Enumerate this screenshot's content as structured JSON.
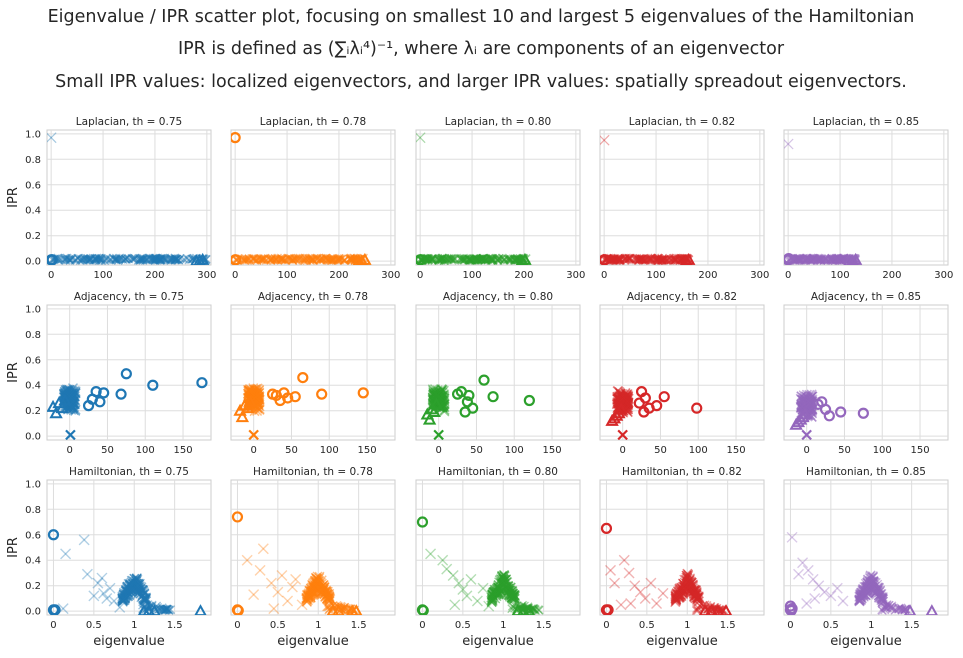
{
  "figure": {
    "title_lines": [
      "Eigenvalue / IPR scatter plot, focusing on smallest 10 and largest 5 eigenvalues of the Hamiltonian",
      "IPR is defined as (∑ᵢλᵢ⁴)⁻¹, where λᵢ are components of an eigenvector",
      "Small IPR values: localized eigenvectors, and larger IPR values: spatially spreadout eigenvectors."
    ]
  },
  "chart_data": {
    "type": "scatter",
    "markers": {
      "smallest_10": "circle",
      "largest_5": "triangle",
      "others": "x"
    },
    "series_colors": [
      "#1f77b4",
      "#ff7f0e",
      "#2ca02c",
      "#d62728",
      "#9467bd"
    ],
    "grid": true,
    "ylabel": "IPR",
    "xlabel": "eigenvalue",
    "ylim": [
      -0.03,
      1.03
    ],
    "yticks": [
      0.0,
      0.2,
      0.4,
      0.6,
      0.8,
      1.0
    ],
    "rows": [
      {
        "name": "Laplacian",
        "xlim": [
          -8,
          308
        ],
        "xticks": [
          0,
          100,
          200,
          300
        ],
        "panels": [
          {
            "title": "Laplacian, th = 0.75",
            "spread": [
              0,
              300
            ],
            "highlow": [
              0.97
            ],
            "circles": [
              [
                0,
                0.01
              ],
              [
                1,
                0.01
              ],
              [
                2,
                0.01
              ]
            ],
            "triangles": [
              [
                280,
                0.0
              ],
              [
                286,
                0.0
              ],
              [
                292,
                0.01
              ]
            ]
          },
          {
            "title": "Laplacian, th = 0.78",
            "spread": [
              0,
              250
            ],
            "highlow": [],
            "circles": [
              [
                0,
                0.97
              ],
              [
                0,
                0.01
              ],
              [
                1,
                0.01
              ]
            ],
            "triangles": [
              [
                238,
                0.0
              ],
              [
                244,
                0.0
              ],
              [
                250,
                0.01
              ]
            ]
          },
          {
            "title": "Laplacian, th = 0.80",
            "spread": [
              0,
              205
            ],
            "highlow": [
              0.97
            ],
            "circles": [
              [
                0,
                0.01
              ],
              [
                1,
                0.01
              ]
            ],
            "triangles": [
              [
                196,
                0.0
              ],
              [
                202,
                0.01
              ]
            ]
          },
          {
            "title": "Laplacian, th = 0.82",
            "spread": [
              0,
              165
            ],
            "highlow": [
              0.95
            ],
            "circles": [
              [
                0,
                0.01
              ],
              [
                1,
                0.01
              ]
            ],
            "triangles": [
              [
                158,
                0.0
              ],
              [
                163,
                0.01
              ]
            ]
          },
          {
            "title": "Laplacian, th = 0.85",
            "spread": [
              0,
              130
            ],
            "highlow": [
              0.92
            ],
            "circles": [
              [
                0,
                0.01
              ],
              [
                1,
                0.02
              ]
            ],
            "triangles": [
              [
                118,
                0.0
              ],
              [
                124,
                0.0
              ],
              [
                130,
                0.01
              ]
            ]
          }
        ]
      },
      {
        "name": "Adjacency",
        "xlim": [
          -30,
          187
        ],
        "xticks": [
          0,
          50,
          100,
          150
        ],
        "panels": [
          {
            "title": "Adjacency, th = 0.75",
            "cluster": [
              0,
              0.29
            ],
            "xs": [
              [
                1,
                0.01
              ]
            ],
            "circles": [
              [
                25,
                0.24
              ],
              [
                30,
                0.29
              ],
              [
                35,
                0.35
              ],
              [
                40,
                0.27
              ],
              [
                45,
                0.34
              ],
              [
                68,
                0.33
              ],
              [
                75,
                0.49
              ],
              [
                110,
                0.4
              ],
              [
                175,
                0.42
              ]
            ],
            "triangles": [
              [
                -22,
                0.23
              ],
              [
                -18,
                0.18
              ],
              [
                -14,
                0.26
              ],
              [
                -10,
                0.22
              ],
              [
                -6,
                0.28
              ]
            ]
          },
          {
            "title": "Adjacency, th = 0.78",
            "cluster": [
              0,
              0.29
            ],
            "xs": [
              [
                0,
                0.01
              ]
            ],
            "circles": [
              [
                25,
                0.33
              ],
              [
                30,
                0.32
              ],
              [
                35,
                0.28
              ],
              [
                40,
                0.34
              ],
              [
                45,
                0.3
              ],
              [
                55,
                0.31
              ],
              [
                65,
                0.46
              ],
              [
                90,
                0.33
              ],
              [
                145,
                0.34
              ]
            ],
            "triangles": [
              [
                -18,
                0.2
              ],
              [
                -15,
                0.15
              ],
              [
                -12,
                0.24
              ],
              [
                -8,
                0.22
              ],
              [
                -5,
                0.27
              ]
            ]
          },
          {
            "title": "Adjacency, th = 0.80",
            "cluster": [
              0,
              0.28
            ],
            "xs": [
              [
                0,
                0.01
              ]
            ],
            "circles": [
              [
                25,
                0.33
              ],
              [
                30,
                0.35
              ],
              [
                35,
                0.19
              ],
              [
                38,
                0.27
              ],
              [
                40,
                0.32
              ],
              [
                45,
                0.22
              ],
              [
                60,
                0.44
              ],
              [
                72,
                0.31
              ],
              [
                120,
                0.28
              ]
            ],
            "triangles": [
              [
                -15,
                0.17
              ],
              [
                -12,
                0.13
              ],
              [
                -9,
                0.21
              ],
              [
                -6,
                0.19
              ],
              [
                -3,
                0.25
              ]
            ]
          },
          {
            "title": "Adjacency, th = 0.82",
            "cluster": [
              0,
              0.27
            ],
            "xs": [
              [
                0,
                0.01
              ]
            ],
            "circles": [
              [
                22,
                0.26
              ],
              [
                25,
                0.35
              ],
              [
                28,
                0.19
              ],
              [
                30,
                0.3
              ],
              [
                35,
                0.22
              ],
              [
                45,
                0.24
              ],
              [
                55,
                0.31
              ],
              [
                98,
                0.22
              ]
            ],
            "triangles": [
              [
                -14,
                0.12
              ],
              [
                -11,
                0.14
              ],
              [
                -8,
                0.16
              ],
              [
                -5,
                0.18
              ],
              [
                -2,
                0.21
              ]
            ]
          },
          {
            "title": "Adjacency, th = 0.85",
            "cluster": [
              0,
              0.24
            ],
            "xs": [
              [
                0,
                0.01
              ]
            ],
            "circles": [
              [
                15,
                0.25
              ],
              [
                20,
                0.27
              ],
              [
                25,
                0.21
              ],
              [
                30,
                0.16
              ],
              [
                45,
                0.19
              ],
              [
                75,
                0.18
              ]
            ],
            "triangles": [
              [
                -14,
                0.09
              ],
              [
                -11,
                0.11
              ],
              [
                -8,
                0.13
              ],
              [
                -5,
                0.15
              ],
              [
                -2,
                0.17
              ]
            ]
          }
        ]
      },
      {
        "name": "Hamiltonian",
        "xlim": [
          -0.08,
          1.95
        ],
        "xticks": [
          0.0,
          0.5,
          1.0,
          1.5
        ],
        "panels": [
          {
            "title": "Hamiltonian, th = 0.75",
            "peak": 1.0,
            "xs": [
              [
                0.15,
                0.45
              ],
              [
                0.38,
                0.56
              ],
              [
                0.42,
                0.29
              ],
              [
                0.55,
                0.22
              ],
              [
                0.5,
                0.12
              ],
              [
                0.62,
                0.14
              ],
              [
                0.7,
                0.18
              ],
              [
                0.75,
                0.08
              ],
              [
                0.82,
                0.03
              ],
              [
                0.6,
                0.26
              ],
              [
                0.66,
                0.1
              ],
              [
                0.12,
                0.02
              ]
            ],
            "circles": [
              [
                0.0,
                0.6
              ],
              [
                0.0,
                0.01
              ],
              [
                0.01,
                0.005
              ],
              [
                0.02,
                0.01
              ]
            ],
            "triangles": [
              [
                1.12,
                0.0
              ],
              [
                1.18,
                0.0
              ],
              [
                1.25,
                0.0
              ],
              [
                1.82,
                0.0
              ]
            ]
          },
          {
            "title": "Hamiltonian, th = 0.78",
            "peak": 1.0,
            "xs": [
              [
                0.12,
                0.4
              ],
              [
                0.32,
                0.49
              ],
              [
                0.28,
                0.32
              ],
              [
                0.42,
                0.22
              ],
              [
                0.5,
                0.15
              ],
              [
                0.55,
                0.28
              ],
              [
                0.62,
                0.08
              ],
              [
                0.68,
                0.19
              ],
              [
                0.72,
                0.25
              ],
              [
                0.8,
                0.05
              ],
              [
                0.2,
                0.13
              ],
              [
                0.45,
                0.02
              ]
            ],
            "circles": [
              [
                0.0,
                0.74
              ],
              [
                0.0,
                0.01
              ],
              [
                0.01,
                0.005
              ]
            ],
            "triangles": [
              [
                1.18,
                0.0
              ],
              [
                1.25,
                0.0
              ],
              [
                1.42,
                0.0
              ],
              [
                1.47,
                0.0
              ]
            ]
          },
          {
            "title": "Hamiltonian, th = 0.80",
            "peak": 1.0,
            "xs": [
              [
                0.1,
                0.45
              ],
              [
                0.25,
                0.4
              ],
              [
                0.3,
                0.33
              ],
              [
                0.38,
                0.28
              ],
              [
                0.45,
                0.22
              ],
              [
                0.5,
                0.17
              ],
              [
                0.55,
                0.12
              ],
              [
                0.6,
                0.25
              ],
              [
                0.68,
                0.08
              ],
              [
                0.75,
                0.18
              ],
              [
                0.82,
                0.04
              ],
              [
                0.4,
                0.05
              ]
            ],
            "circles": [
              [
                0.0,
                0.7
              ],
              [
                0.0,
                0.01
              ],
              [
                0.01,
                0.005
              ]
            ],
            "triangles": [
              [
                1.18,
                0.0
              ],
              [
                1.25,
                0.0
              ],
              [
                1.32,
                0.0
              ]
            ]
          },
          {
            "title": "Hamiltonian, th = 0.82",
            "peak": 1.0,
            "xs": [
              [
                0.05,
                0.32
              ],
              [
                0.1,
                0.22
              ],
              [
                0.22,
                0.4
              ],
              [
                0.28,
                0.3
              ],
              [
                0.35,
                0.2
              ],
              [
                0.42,
                0.15
              ],
              [
                0.48,
                0.1
              ],
              [
                0.55,
                0.22
              ],
              [
                0.62,
                0.06
              ],
              [
                0.7,
                0.14
              ],
              [
                0.3,
                0.06
              ],
              [
                0.18,
                0.05
              ]
            ],
            "circles": [
              [
                0.0,
                0.65
              ],
              [
                0.0,
                0.01
              ],
              [
                0.01,
                0.005
              ],
              [
                0.02,
                0.01
              ]
            ],
            "triangles": [
              [
                1.22,
                0.0
              ],
              [
                1.3,
                0.0
              ],
              [
                1.38,
                0.0
              ],
              [
                1.48,
                0.0
              ]
            ]
          },
          {
            "title": "Hamiltonian, th = 0.85",
            "peak": 1.0,
            "xs": [
              [
                0.02,
                0.58
              ],
              [
                0.1,
                0.29
              ],
              [
                0.15,
                0.38
              ],
              [
                0.22,
                0.32
              ],
              [
                0.28,
                0.25
              ],
              [
                0.35,
                0.2
              ],
              [
                0.42,
                0.15
              ],
              [
                0.5,
                0.12
              ],
              [
                0.58,
                0.18
              ],
              [
                0.65,
                0.08
              ],
              [
                0.3,
                0.1
              ],
              [
                0.2,
                0.06
              ]
            ],
            "circles": [
              [
                0.0,
                0.04
              ],
              [
                0.0,
                0.01
              ],
              [
                0.01,
                0.005
              ],
              [
                0.02,
                0.02
              ]
            ],
            "triangles": [
              [
                1.48,
                0.0
              ],
              [
                1.75,
                0.0
              ]
            ]
          }
        ]
      }
    ]
  }
}
